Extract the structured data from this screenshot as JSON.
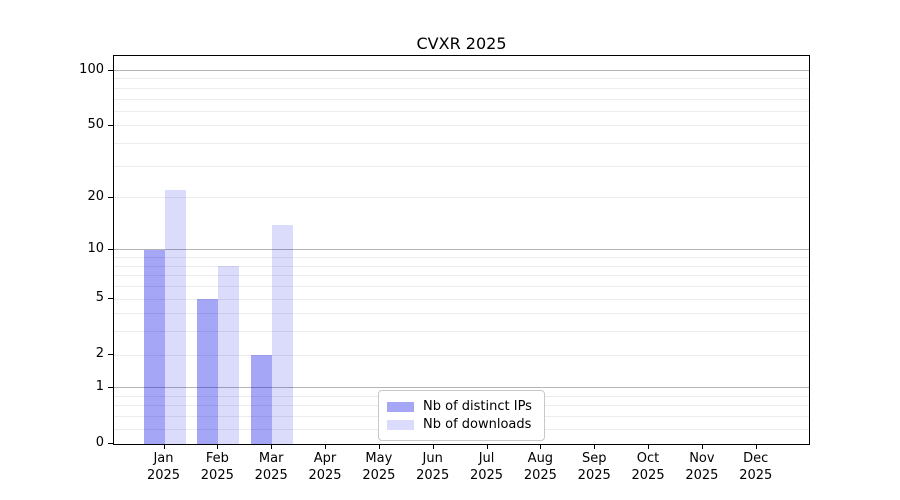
{
  "figure": {
    "background": "#ffffff"
  },
  "chart_data": {
    "type": "bar",
    "title": "CVXR 2025",
    "year_label": "2025",
    "months": [
      "Jan",
      "Feb",
      "Mar",
      "Apr",
      "May",
      "Jun",
      "Jul",
      "Aug",
      "Sep",
      "Oct",
      "Nov",
      "Dec"
    ],
    "series": [
      {
        "name": "Nb of distinct IPs",
        "color": "rgba(0,0,230,0.35)",
        "values": [
          10,
          5,
          2,
          0,
          0,
          0,
          0,
          0,
          0,
          0,
          0,
          0
        ]
      },
      {
        "name": "Nb of downloads",
        "color": "rgba(0,0,230,0.14)",
        "values": [
          22,
          8,
          14,
          0,
          0,
          0,
          0,
          0,
          0,
          0,
          0,
          0
        ]
      }
    ],
    "y_axis": {
      "scale": "log1p",
      "tick_values": [
        0,
        1,
        2,
        5,
        10,
        20,
        50,
        100
      ],
      "major_grid_values": [
        1,
        10,
        100
      ],
      "minor_grid_values": [
        0.2,
        0.4,
        0.6,
        0.8,
        2,
        3,
        4,
        5,
        6,
        7,
        8,
        9,
        20,
        30,
        40,
        50,
        60,
        70,
        80,
        90
      ],
      "top_value": 120
    },
    "x_axis": {
      "label_lines": 2
    },
    "legend": {
      "position": "lower center",
      "entries": [
        "Nb of distinct IPs",
        "Nb of downloads"
      ]
    },
    "grid": true,
    "colors": {
      "major_grid": "#b4b4b4",
      "minor_grid": "#ececec",
      "spine": "#000000",
      "bar_dark_on_white": "#a6a6f7",
      "bar_light_on_white": "#dbdbfc"
    }
  }
}
